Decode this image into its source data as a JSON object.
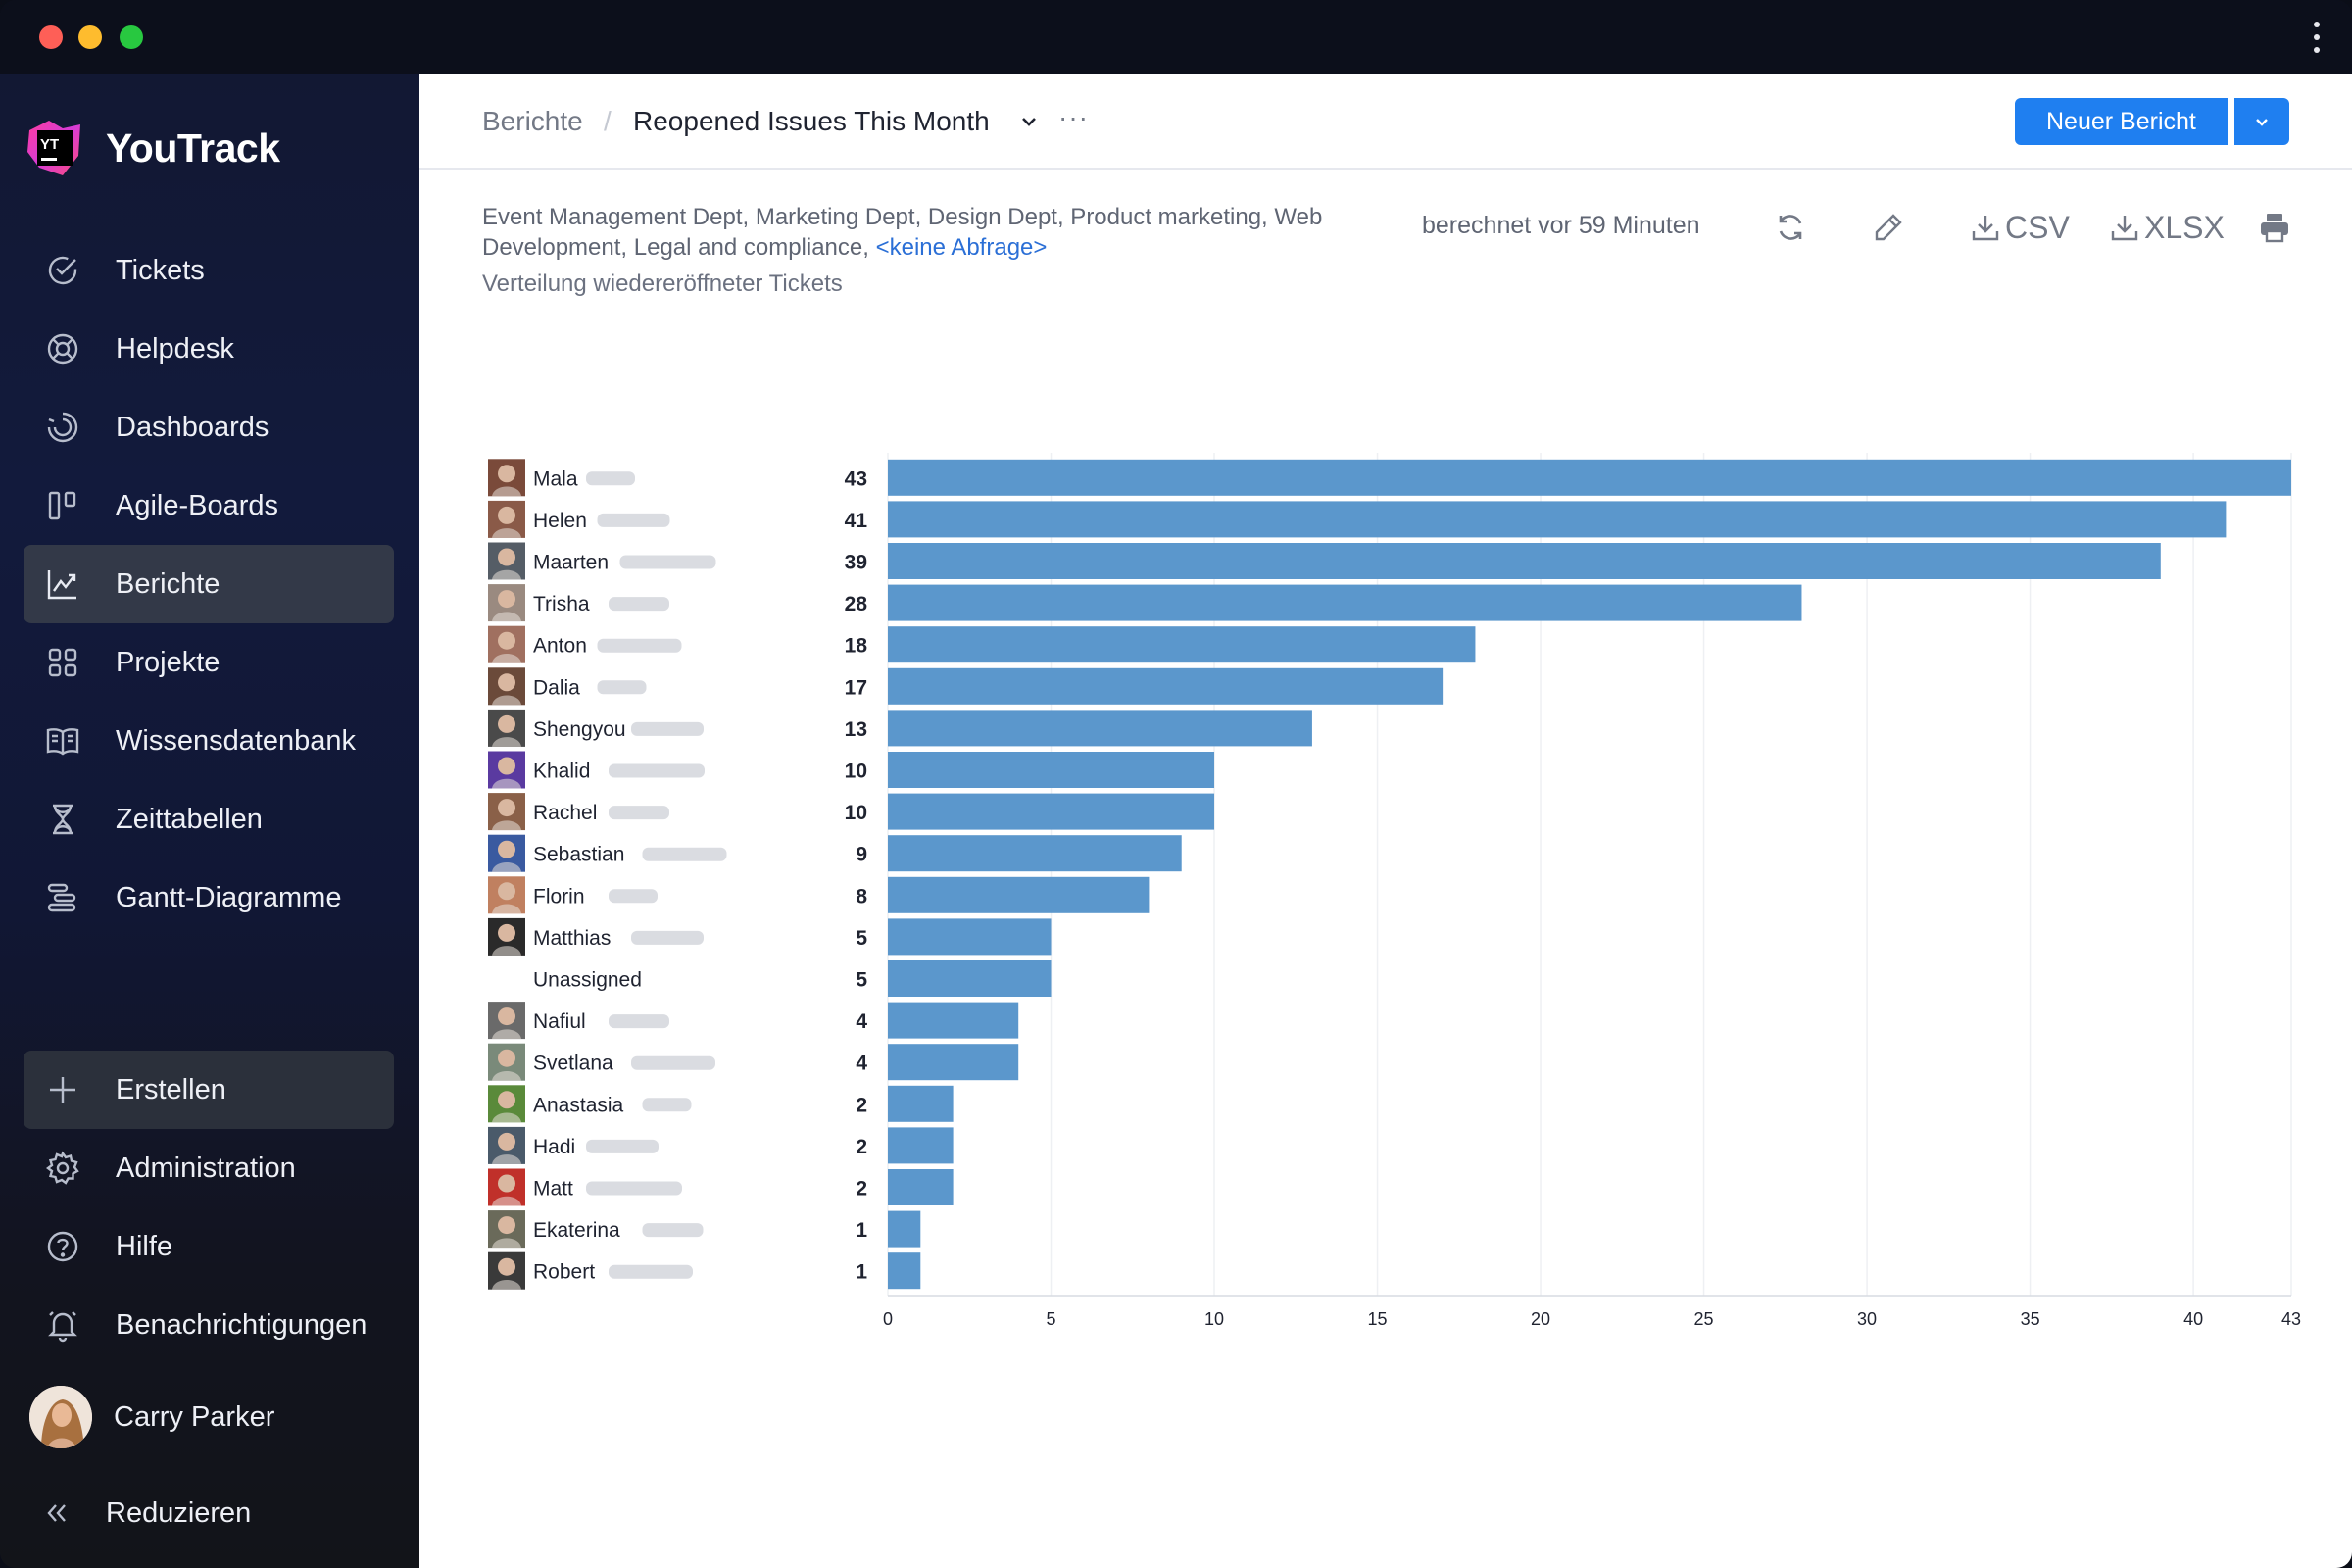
{
  "app": {
    "name": "YouTrack",
    "logo_badge": "YT"
  },
  "sidebar": {
    "items": [
      {
        "label": "Tickets",
        "icon": "check-circle-icon"
      },
      {
        "label": "Helpdesk",
        "icon": "lifebuoy-icon"
      },
      {
        "label": "Dashboards",
        "icon": "gauge-icon"
      },
      {
        "label": "Agile-Boards",
        "icon": "board-icon"
      },
      {
        "label": "Berichte",
        "icon": "chart-icon",
        "active": true
      },
      {
        "label": "Projekte",
        "icon": "grid-icon"
      },
      {
        "label": "Wissensdatenbank",
        "icon": "book-icon"
      },
      {
        "label": "Zeittabellen",
        "icon": "hourglass-icon"
      },
      {
        "label": "Gantt-Diagramme",
        "icon": "gantt-icon"
      }
    ],
    "bottom_items": [
      {
        "label": "Erstellen",
        "icon": "plus-icon"
      },
      {
        "label": "Administration",
        "icon": "gear-icon"
      },
      {
        "label": "Hilfe",
        "icon": "help-icon"
      },
      {
        "label": "Benachrichtigungen",
        "icon": "bell-icon"
      }
    ],
    "user_name": "Carry Parker",
    "collapse_label": "Reduzieren"
  },
  "header": {
    "breadcrumb_root": "Berichte",
    "breadcrumb_separator": "/",
    "report_title": "Reopened Issues This Month",
    "more": "···",
    "new_report_label": "Neuer Bericht"
  },
  "report": {
    "projects_text": "Event Management Dept, Marketing Dept, Design Dept, Product marketing, Web Development, Legal and compliance,",
    "query_link": "<keine Abfrage>",
    "subtitle": "Verteilung wiedereröffneter Tickets",
    "computed": "berechnet vor 59 Minuten",
    "csv_label": "CSV",
    "xlsx_label": "XLSX"
  },
  "colors": {
    "bar": "#5b97cc",
    "accent": "#1f7ff0",
    "link": "#2b6fd6"
  },
  "chart_data": {
    "type": "bar",
    "orientation": "horizontal",
    "categories": [
      "Mala",
      "Helen",
      "Maarten",
      "Trisha",
      "Anton",
      "Dalia",
      "Shengyou",
      "Khalid",
      "Rachel",
      "Sebastian",
      "Florin",
      "Matthias",
      "Unassigned",
      "Nafiul",
      "Svetlana",
      "Anastasia",
      "Hadi",
      "Matt",
      "Ekaterina",
      "Robert"
    ],
    "values": [
      43,
      41,
      39,
      28,
      18,
      17,
      13,
      10,
      10,
      9,
      8,
      5,
      5,
      4,
      4,
      2,
      2,
      2,
      1,
      1
    ],
    "xticks": [
      0,
      5,
      10,
      15,
      20,
      25,
      30,
      35,
      40,
      43
    ],
    "xlim": [
      0,
      43
    ],
    "grid": true,
    "title": "",
    "xlabel": "",
    "ylabel": ""
  }
}
